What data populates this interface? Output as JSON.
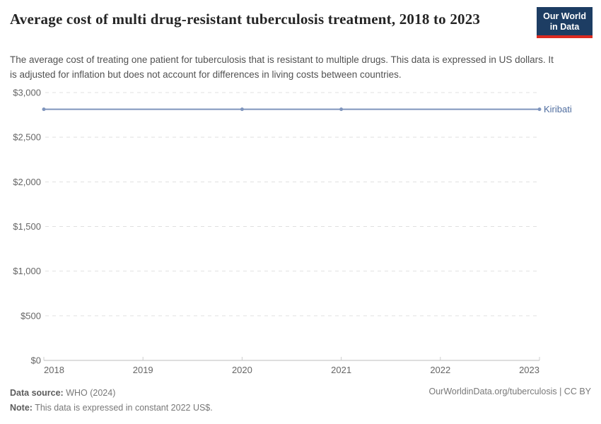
{
  "header": {
    "title": "Average cost of multi drug-resistant tuberculosis treatment, 2018 to 2023",
    "subtitle": "The average cost of treating one patient for tuberculosis that is resistant to multiple drugs. This data is expressed in US dollars. It is adjusted for inflation but does not account for differences in living costs between countries.",
    "logo": {
      "line1": "Our World",
      "line2": "in Data",
      "bg_color": "#1d3d63",
      "stripe_color": "#dc2a20"
    }
  },
  "chart_data": {
    "type": "line",
    "title": "Average cost of multi drug-resistant tuberculosis treatment, 2018 to 2023",
    "x_years": [
      2018,
      2019,
      2020,
      2021,
      2022,
      2023
    ],
    "x_tick_labels": [
      "2018",
      "2019",
      "2020",
      "2021",
      "2022",
      "2023"
    ],
    "xlabel": "",
    "ylabel": "",
    "ylim": [
      0,
      3000
    ],
    "yticks": [
      {
        "value": 0,
        "label": "$0"
      },
      {
        "value": 500,
        "label": "$500"
      },
      {
        "value": 1000,
        "label": "$1,000"
      },
      {
        "value": 1500,
        "label": "$1,500"
      },
      {
        "value": 2000,
        "label": "$2,000"
      },
      {
        "value": 2500,
        "label": "$2,500"
      },
      {
        "value": 3000,
        "label": "$3,000"
      }
    ],
    "grid": "horizontal-dashed",
    "legend_position": "end-of-line-label",
    "series": [
      {
        "name": "Kiribati",
        "color": "#7f95bd",
        "label_color": "#4f6d9f",
        "points": [
          {
            "year": 2018,
            "value": 2813,
            "marker": true
          },
          {
            "year": 2019,
            "value": 2813,
            "marker": false
          },
          {
            "year": 2020,
            "value": 2813,
            "marker": true
          },
          {
            "year": 2021,
            "value": 2813,
            "marker": true
          },
          {
            "year": 2022,
            "value": 2813,
            "marker": false
          },
          {
            "year": 2023,
            "value": 2813,
            "marker": true
          }
        ]
      }
    ]
  },
  "footer": {
    "source_label": "Data source:",
    "source_value": "WHO (2024)",
    "note_label": "Note:",
    "note_value": "This data is expressed in constant 2022 US$.",
    "attribution": "OurWorldinData.org/tuberculosis | CC BY"
  }
}
